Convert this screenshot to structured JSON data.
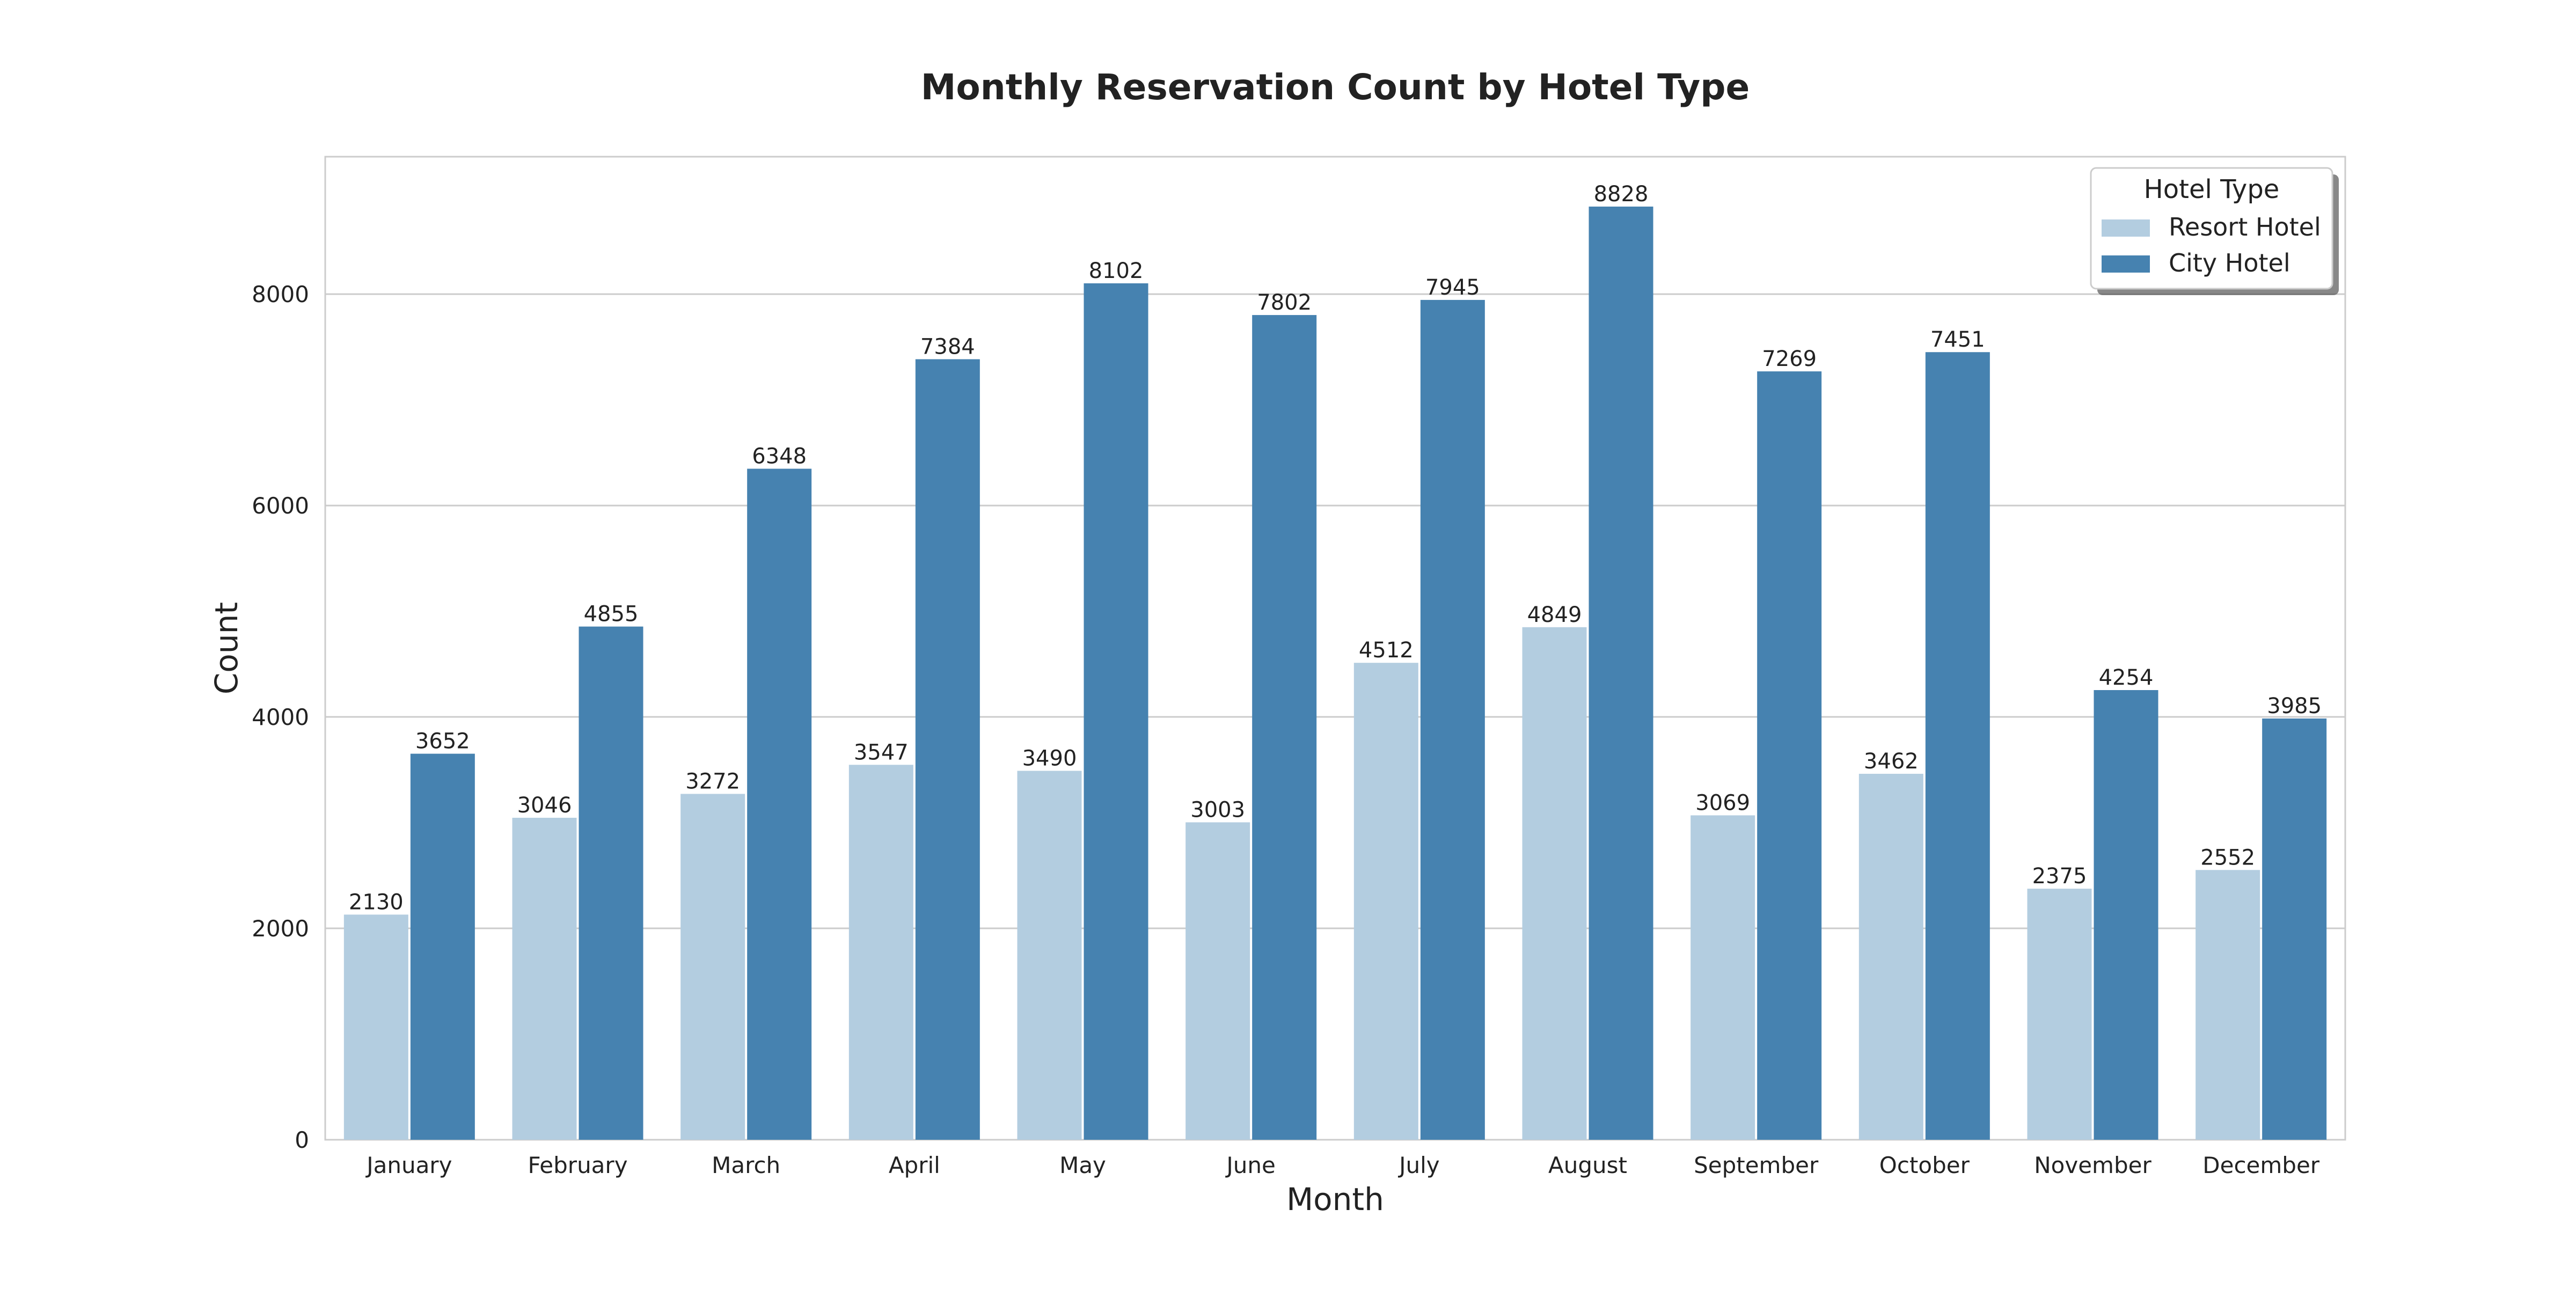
{
  "chart_data": {
    "type": "bar",
    "title": "Monthly Reservation Count by Hotel Type",
    "xlabel": "Month",
    "ylabel": "Count",
    "categories": [
      "January",
      "February",
      "March",
      "April",
      "May",
      "June",
      "July",
      "August",
      "September",
      "October",
      "November",
      "December"
    ],
    "series": [
      {
        "name": "Resort Hotel",
        "color": "#b3cde0",
        "values": [
          2130,
          3046,
          3272,
          3547,
          3490,
          3003,
          4512,
          4849,
          3069,
          3462,
          2375,
          2552
        ]
      },
      {
        "name": "City Hotel",
        "color": "#4682b0",
        "values": [
          3652,
          4855,
          6348,
          7384,
          8102,
          7802,
          7945,
          8828,
          7269,
          7451,
          4254,
          3985
        ]
      }
    ],
    "ylim": [
      0,
      9300
    ],
    "yticks": [
      0,
      2000,
      4000,
      6000,
      8000
    ],
    "grid": true,
    "legend": {
      "title": "Hotel Type",
      "position": "top-right"
    },
    "data_labels": true
  }
}
